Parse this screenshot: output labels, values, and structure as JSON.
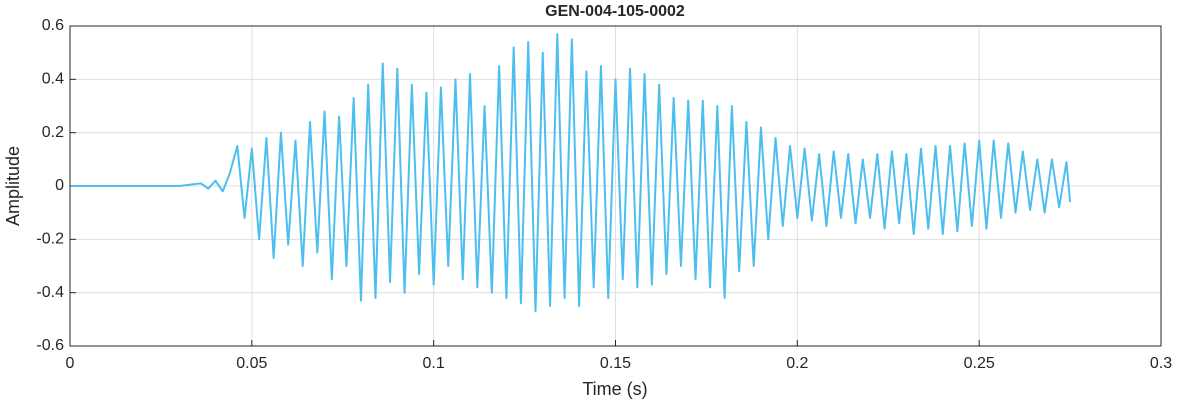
{
  "chart_data": {
    "type": "line",
    "title": "GEN-004-105-0002",
    "x_label": "Time (s)",
    "y_label": "Amplitude",
    "x": [
      0,
      0.01,
      0.02,
      0.03,
      0.036,
      0.038,
      0.04,
      0.042,
      0.044,
      0.046,
      0.048,
      0.05,
      0.052,
      0.054,
      0.056,
      0.058,
      0.06,
      0.062,
      0.064,
      0.066,
      0.068,
      0.07,
      0.072,
      0.074,
      0.076,
      0.078,
      0.08,
      0.082,
      0.084,
      0.086,
      0.088,
      0.09,
      0.092,
      0.094,
      0.096,
      0.098,
      0.1,
      0.102,
      0.104,
      0.106,
      0.108,
      0.11,
      0.112,
      0.114,
      0.116,
      0.118,
      0.12,
      0.122,
      0.124,
      0.126,
      0.128,
      0.13,
      0.132,
      0.134,
      0.136,
      0.138,
      0.14,
      0.142,
      0.144,
      0.146,
      0.148,
      0.15,
      0.152,
      0.154,
      0.156,
      0.158,
      0.16,
      0.162,
      0.164,
      0.166,
      0.168,
      0.17,
      0.172,
      0.174,
      0.176,
      0.178,
      0.18,
      0.182,
      0.184,
      0.186,
      0.188,
      0.19,
      0.192,
      0.194,
      0.196,
      0.198,
      0.2,
      0.202,
      0.204,
      0.206,
      0.208,
      0.21,
      0.212,
      0.214,
      0.216,
      0.218,
      0.22,
      0.222,
      0.224,
      0.226,
      0.228,
      0.23,
      0.232,
      0.234,
      0.236,
      0.238,
      0.24,
      0.242,
      0.244,
      0.246,
      0.248,
      0.25,
      0.252,
      0.254,
      0.256,
      0.258,
      0.26,
      0.262,
      0.264,
      0.266,
      0.268,
      0.27,
      0.272,
      0.274,
      0.275
    ],
    "values": [
      0,
      0,
      0,
      0,
      0.01,
      -0.01,
      0.02,
      -0.02,
      0.05,
      0.15,
      -0.12,
      0.14,
      -0.2,
      0.18,
      -0.27,
      0.2,
      -0.22,
      0.17,
      -0.3,
      0.24,
      -0.25,
      0.28,
      -0.35,
      0.26,
      -0.3,
      0.33,
      -0.43,
      0.38,
      -0.42,
      0.46,
      -0.36,
      0.44,
      -0.4,
      0.38,
      -0.33,
      0.35,
      -0.37,
      0.37,
      -0.3,
      0.4,
      -0.35,
      0.42,
      -0.38,
      0.3,
      -0.4,
      0.45,
      -0.42,
      0.52,
      -0.44,
      0.54,
      -0.47,
      0.5,
      -0.45,
      0.57,
      -0.42,
      0.55,
      -0.45,
      0.43,
      -0.38,
      0.45,
      -0.42,
      0.4,
      -0.35,
      0.44,
      -0.38,
      0.42,
      -0.37,
      0.38,
      -0.33,
      0.33,
      -0.3,
      0.32,
      -0.35,
      0.32,
      -0.38,
      0.3,
      -0.42,
      0.3,
      -0.32,
      0.24,
      -0.3,
      0.22,
      -0.2,
      0.18,
      -0.15,
      0.15,
      -0.12,
      0.14,
      -0.13,
      0.12,
      -0.15,
      0.13,
      -0.12,
      0.12,
      -0.14,
      0.1,
      -0.12,
      0.12,
      -0.16,
      0.13,
      -0.14,
      0.12,
      -0.18,
      0.14,
      -0.16,
      0.15,
      -0.18,
      0.15,
      -0.17,
      0.16,
      -0.15,
      0.17,
      -0.16,
      0.17,
      -0.12,
      0.16,
      -0.1,
      0.13,
      -0.09,
      0.1,
      -0.1,
      0.1,
      -0.08,
      0.09,
      -0.06
    ],
    "color": "#4DBEEE",
    "xlim": [
      0,
      0.3
    ],
    "xticks": [
      0,
      0.05,
      0.1,
      0.15,
      0.2,
      0.25,
      0.3
    ],
    "ylim": [
      -0.6,
      0.6
    ],
    "yticks": [
      -0.6,
      -0.4,
      -0.2,
      0,
      0.2,
      0.4,
      0.6
    ],
    "grid": true
  }
}
